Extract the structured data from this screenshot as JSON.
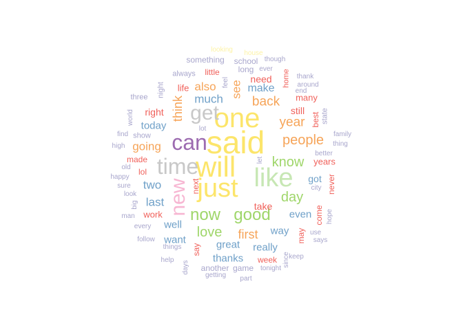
{
  "word_cloud": {
    "palette": {
      "purple": "#9c6bb0",
      "light_purple": "#a8a6cc",
      "blue": "#6fa0c8",
      "light_blue": "#a9c8e0",
      "green": "#9fd66a",
      "light_green": "#c7e7b4",
      "orange": "#f6a458",
      "red": "#f0605a",
      "pink": "#f7b6d2",
      "yellow": "#fce56b",
      "light_yellow": "#fdf3a6",
      "gray": "#c8c8c8"
    },
    "words": [
      {
        "text": "said",
        "color": "yellow",
        "rotated": false
      },
      {
        "text": "will",
        "color": "yellow",
        "rotated": false
      },
      {
        "text": "one",
        "color": "yellow",
        "rotated": false
      },
      {
        "text": "just",
        "color": "yellow",
        "rotated": false
      },
      {
        "text": "like",
        "color": "light_green",
        "rotated": false
      },
      {
        "text": "can",
        "color": "purple",
        "rotated": false
      },
      {
        "text": "time",
        "color": "gray",
        "rotated": false
      },
      {
        "text": "get",
        "color": "gray",
        "rotated": false
      },
      {
        "text": "new",
        "color": "pink",
        "rotated": true
      },
      {
        "text": "now",
        "color": "green",
        "rotated": false
      },
      {
        "text": "good",
        "color": "green",
        "rotated": false
      },
      {
        "text": "love",
        "color": "green",
        "rotated": false
      },
      {
        "text": "know",
        "color": "green",
        "rotated": false
      },
      {
        "text": "day",
        "color": "green",
        "rotated": false
      },
      {
        "text": "people",
        "color": "orange",
        "rotated": false
      },
      {
        "text": "back",
        "color": "orange",
        "rotated": false
      },
      {
        "text": "year",
        "color": "orange",
        "rotated": false
      },
      {
        "text": "think",
        "color": "orange",
        "rotated": true
      },
      {
        "text": "going",
        "color": "orange",
        "rotated": false
      },
      {
        "text": "first",
        "color": "orange",
        "rotated": false
      },
      {
        "text": "also",
        "color": "orange",
        "rotated": false
      },
      {
        "text": "see",
        "color": "orange",
        "rotated": true
      },
      {
        "text": "much",
        "color": "blue",
        "rotated": false
      },
      {
        "text": "make",
        "color": "blue",
        "rotated": false
      },
      {
        "text": "today",
        "color": "blue",
        "rotated": false
      },
      {
        "text": "two",
        "color": "blue",
        "rotated": false
      },
      {
        "text": "last",
        "color": "blue",
        "rotated": false
      },
      {
        "text": "well",
        "color": "blue",
        "rotated": false
      },
      {
        "text": "want",
        "color": "blue",
        "rotated": false
      },
      {
        "text": "great",
        "color": "blue",
        "rotated": false
      },
      {
        "text": "thanks",
        "color": "blue",
        "rotated": false
      },
      {
        "text": "really",
        "color": "blue",
        "rotated": false
      },
      {
        "text": "way",
        "color": "blue",
        "rotated": false
      },
      {
        "text": "even",
        "color": "blue",
        "rotated": false
      },
      {
        "text": "got",
        "color": "blue",
        "rotated": false
      },
      {
        "text": "need",
        "color": "red",
        "rotated": false
      },
      {
        "text": "many",
        "color": "red",
        "rotated": false
      },
      {
        "text": "still",
        "color": "red",
        "rotated": false
      },
      {
        "text": "right",
        "color": "red",
        "rotated": false
      },
      {
        "text": "made",
        "color": "red",
        "rotated": false
      },
      {
        "text": "lol",
        "color": "red",
        "rotated": false
      },
      {
        "text": "work",
        "color": "red",
        "rotated": false
      },
      {
        "text": "years",
        "color": "red",
        "rotated": false
      },
      {
        "text": "take",
        "color": "red",
        "rotated": false
      },
      {
        "text": "week",
        "color": "red",
        "rotated": false
      },
      {
        "text": "life",
        "color": "red",
        "rotated": false
      },
      {
        "text": "little",
        "color": "red",
        "rotated": false
      },
      {
        "text": "home",
        "color": "red",
        "rotated": true
      },
      {
        "text": "best",
        "color": "red",
        "rotated": true
      },
      {
        "text": "next",
        "color": "red",
        "rotated": true
      },
      {
        "text": "say",
        "color": "red",
        "rotated": true
      },
      {
        "text": "come",
        "color": "red",
        "rotated": true
      },
      {
        "text": "never",
        "color": "red",
        "rotated": true
      },
      {
        "text": "may",
        "color": "red",
        "rotated": true
      },
      {
        "text": "something",
        "color": "light_purple",
        "rotated": false
      },
      {
        "text": "school",
        "color": "light_purple",
        "rotated": false
      },
      {
        "text": "long",
        "color": "light_purple",
        "rotated": false
      },
      {
        "text": "always",
        "color": "light_purple",
        "rotated": false
      },
      {
        "text": "though",
        "color": "light_purple",
        "rotated": false
      },
      {
        "text": "ever",
        "color": "light_purple",
        "rotated": false
      },
      {
        "text": "thank",
        "color": "light_purple",
        "rotated": false
      },
      {
        "text": "around",
        "color": "light_purple",
        "rotated": false
      },
      {
        "text": "end",
        "color": "light_purple",
        "rotated": false
      },
      {
        "text": "three",
        "color": "light_purple",
        "rotated": false
      },
      {
        "text": "night",
        "color": "light_purple",
        "rotated": true
      },
      {
        "text": "feel",
        "color": "light_purple",
        "rotated": true
      },
      {
        "text": "world",
        "color": "light_purple",
        "rotated": true
      },
      {
        "text": "state",
        "color": "light_purple",
        "rotated": true
      },
      {
        "text": "lot",
        "color": "light_purple",
        "rotated": false
      },
      {
        "text": "find",
        "color": "light_purple",
        "rotated": false
      },
      {
        "text": "show",
        "color": "light_purple",
        "rotated": false
      },
      {
        "text": "high",
        "color": "light_purple",
        "rotated": false
      },
      {
        "text": "family",
        "color": "light_purple",
        "rotated": false
      },
      {
        "text": "thing",
        "color": "light_purple",
        "rotated": false
      },
      {
        "text": "better",
        "color": "light_purple",
        "rotated": false
      },
      {
        "text": "old",
        "color": "light_purple",
        "rotated": false
      },
      {
        "text": "happy",
        "color": "light_purple",
        "rotated": false
      },
      {
        "text": "let",
        "color": "light_purple",
        "rotated": true
      },
      {
        "text": "sure",
        "color": "light_purple",
        "rotated": false
      },
      {
        "text": "city",
        "color": "light_purple",
        "rotated": false
      },
      {
        "text": "look",
        "color": "light_purple",
        "rotated": false
      },
      {
        "text": "big",
        "color": "light_purple",
        "rotated": true
      },
      {
        "text": "man",
        "color": "light_purple",
        "rotated": false
      },
      {
        "text": "hope",
        "color": "light_purple",
        "rotated": true
      },
      {
        "text": "every",
        "color": "light_purple",
        "rotated": false
      },
      {
        "text": "use",
        "color": "light_purple",
        "rotated": false
      },
      {
        "text": "says",
        "color": "light_purple",
        "rotated": false
      },
      {
        "text": "follow",
        "color": "light_purple",
        "rotated": false
      },
      {
        "text": "things",
        "color": "light_purple",
        "rotated": false
      },
      {
        "text": "keep",
        "color": "light_purple",
        "rotated": false
      },
      {
        "text": "help",
        "color": "light_purple",
        "rotated": false
      },
      {
        "text": "another",
        "color": "light_purple",
        "rotated": false
      },
      {
        "text": "game",
        "color": "light_purple",
        "rotated": false
      },
      {
        "text": "tonight",
        "color": "light_purple",
        "rotated": false
      },
      {
        "text": "since",
        "color": "light_purple",
        "rotated": true
      },
      {
        "text": "days",
        "color": "light_purple",
        "rotated": true
      },
      {
        "text": "getting",
        "color": "light_purple",
        "rotated": false
      },
      {
        "text": "part",
        "color": "light_purple",
        "rotated": false
      },
      {
        "text": "looking",
        "color": "light_yellow",
        "rotated": false
      },
      {
        "text": "house",
        "color": "light_yellow",
        "rotated": false
      }
    ]
  }
}
